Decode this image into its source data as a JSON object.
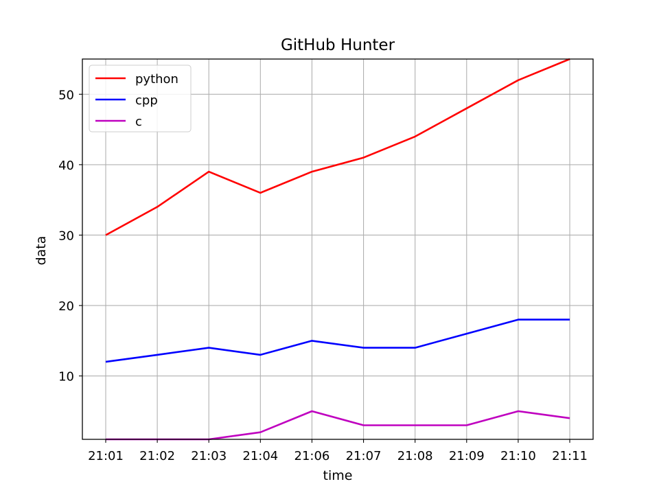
{
  "chart_data": {
    "type": "line",
    "title": "GitHub Hunter",
    "xlabel": "time",
    "ylabel": "data",
    "categories": [
      "21:01",
      "21:02",
      "21:03",
      "21:04",
      "21:06",
      "21:07",
      "21:08",
      "21:09",
      "21:10",
      "21:11"
    ],
    "y_ticks": [
      10,
      20,
      30,
      40,
      50
    ],
    "ylim": [
      1,
      55
    ],
    "grid": true,
    "legend_position": "upper-left",
    "series": [
      {
        "name": "python",
        "color": "#ff0000",
        "values": [
          30,
          34,
          39,
          36,
          39,
          41,
          44,
          48,
          52,
          55
        ]
      },
      {
        "name": "cpp",
        "color": "#0000ff",
        "values": [
          12,
          13,
          14,
          13,
          15,
          14,
          14,
          16,
          18,
          18
        ]
      },
      {
        "name": "c",
        "color": "#bf00bf",
        "values": [
          1,
          1,
          1,
          2,
          5,
          3,
          3,
          3,
          5,
          4
        ]
      }
    ]
  }
}
